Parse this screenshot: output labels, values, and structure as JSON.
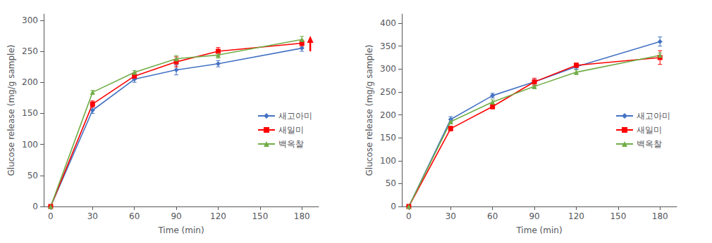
{
  "chart_data": [
    {
      "type": "line",
      "xlabel": "Time (min)",
      "ylabel": "Glucose release (mg/g sample)",
      "xlim": [
        -5,
        192
      ],
      "ylim": [
        0,
        310
      ],
      "xticks": [
        0,
        30,
        60,
        90,
        120,
        150,
        180
      ],
      "yticks": [
        0,
        50,
        100,
        150,
        200,
        250,
        300
      ],
      "legend": "right",
      "series": [
        {
          "name": "새고아미",
          "color": "#4472C4",
          "marker": "diamond",
          "x": [
            0,
            30,
            60,
            90,
            120,
            180
          ],
          "values": [
            0,
            155,
            205,
            220,
            230,
            255
          ],
          "yerr": [
            0,
            5,
            5,
            8,
            5,
            5
          ]
        },
        {
          "name": "새일미",
          "color": "#FF0000",
          "marker": "square",
          "x": [
            0,
            30,
            60,
            90,
            120,
            180
          ],
          "values": [
            0,
            165,
            210,
            233,
            250,
            263
          ],
          "yerr": [
            0,
            5,
            5,
            8,
            6,
            5
          ]
        },
        {
          "name": "백옥찰",
          "color": "#70AD47",
          "marker": "triangle",
          "x": [
            0,
            30,
            60,
            90,
            120,
            180
          ],
          "values": [
            0,
            184,
            216,
            238,
            244,
            269
          ],
          "yerr": [
            0,
            3,
            3,
            5,
            5,
            5
          ]
        }
      ],
      "annotations": [
        {
          "type": "arrow",
          "x": 186,
          "y_start": 250,
          "y_end": 275,
          "color": "#FF0000"
        }
      ]
    },
    {
      "type": "line",
      "xlabel": "Time (min)",
      "ylabel": "Glucose release (mg/g sample)",
      "xlim": [
        -5,
        192
      ],
      "ylim": [
        0,
        420
      ],
      "xticks": [
        0,
        30,
        60,
        90,
        120,
        150,
        180
      ],
      "yticks": [
        0,
        50,
        100,
        150,
        200,
        250,
        300,
        350,
        400
      ],
      "legend": "right",
      "series": [
        {
          "name": "새고아미",
          "color": "#4472C4",
          "marker": "diamond",
          "x": [
            0,
            30,
            60,
            90,
            120,
            180
          ],
          "values": [
            0,
            190,
            242,
            272,
            305,
            360
          ],
          "yerr": [
            0,
            6,
            5,
            5,
            5,
            10
          ]
        },
        {
          "name": "새일미",
          "color": "#FF0000",
          "marker": "square",
          "x": [
            0,
            30,
            60,
            90,
            120,
            180
          ],
          "values": [
            0,
            170,
            218,
            272,
            308,
            325
          ],
          "yerr": [
            0,
            5,
            5,
            8,
            5,
            15
          ]
        },
        {
          "name": "백옥찰",
          "color": "#70AD47",
          "marker": "triangle",
          "x": [
            0,
            30,
            60,
            90,
            120,
            180
          ],
          "values": [
            0,
            185,
            228,
            262,
            293,
            330
          ],
          "yerr": [
            0,
            5,
            5,
            5,
            5,
            5
          ]
        }
      ]
    }
  ]
}
